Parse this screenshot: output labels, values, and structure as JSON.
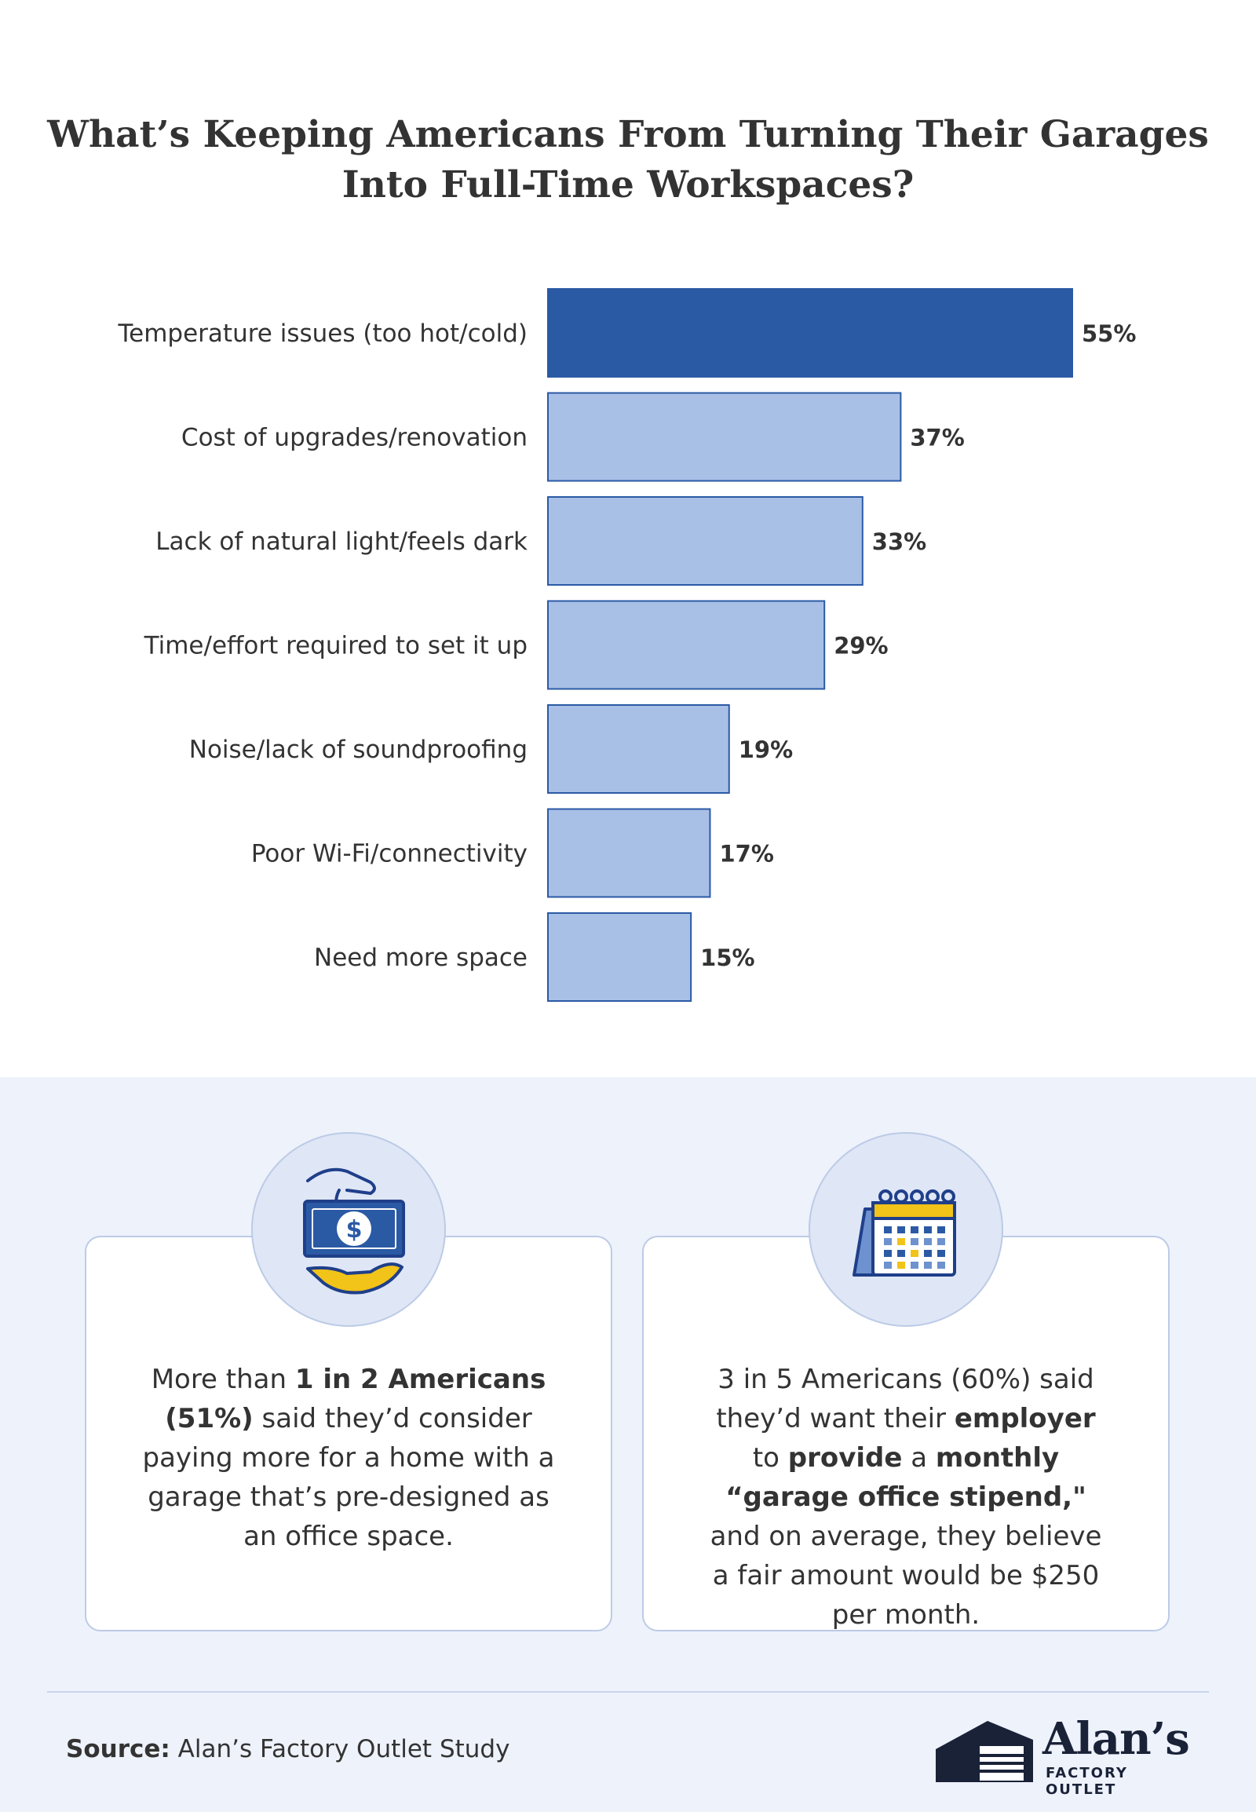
{
  "title": {
    "line1": "What’s Keeping Americans From Turning Their Garages",
    "line2": "Into Full-Time Workspaces?"
  },
  "chart_data": {
    "type": "bar",
    "orientation": "horizontal",
    "categories": [
      "Temperature issues (too hot/cold)",
      "Cost of upgrades/renovation",
      "Lack of natural light/feels dark",
      "Time/effort required to set it up",
      "Noise/lack of soundproofing",
      "Poor Wi-Fi/connectivity",
      "Need more space"
    ],
    "values": [
      55,
      37,
      33,
      29,
      19,
      17,
      15
    ],
    "value_labels": [
      "55%",
      "37%",
      "33%",
      "29%",
      "19%",
      "17%",
      "15%"
    ],
    "unit": "%",
    "highlight_color": "#2b5aa5",
    "bar_color": "#a9c0e6",
    "bar_border_color": "#2b5aa5"
  },
  "cards": {
    "left": {
      "icon": "money-hand-icon",
      "parts": [
        {
          "t": "More than ",
          "b": false
        },
        {
          "t": "1 in 2 Americans (51%)",
          "b": true
        },
        {
          "t": " said they’d consider paying more for a home with a garage that’s pre-designed as an office space.",
          "b": false
        }
      ]
    },
    "right": {
      "icon": "calendar-icon",
      "parts": [
        {
          "t": "3 in 5 Americans (60%) said they’d want their ",
          "b": false
        },
        {
          "t": "employer",
          "b": true
        },
        {
          "t": " to ",
          "b": false
        },
        {
          "t": "provide",
          "b": true
        },
        {
          "t": " a ",
          "b": false
        },
        {
          "t": "monthly “garage office stipend,\"",
          "b": true
        },
        {
          "t": " and on average, they believe a fair amount would be $250 per month.",
          "b": false
        }
      ]
    }
  },
  "footer": {
    "source_label": "Source:",
    "source_text": " Alan’s Factory Outlet Study",
    "logo_name": "Alan’s",
    "logo_sub": "FACTORY OUTLET"
  }
}
